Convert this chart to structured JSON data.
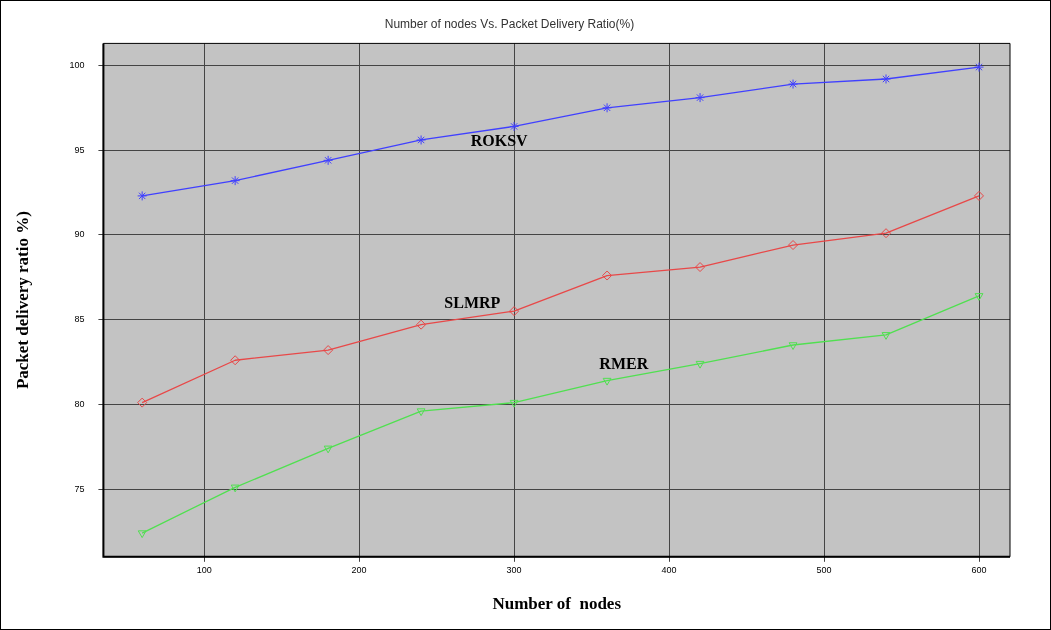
{
  "chart_data": {
    "type": "line",
    "title": "Number of nodes Vs. Packet Delivery Ratio(%)",
    "xlabel": "Number of  nodes",
    "ylabel": "Packet delivery ratio %)",
    "x": [
      60,
      120,
      180,
      240,
      300,
      360,
      420,
      480,
      540,
      600
    ],
    "series": [
      {
        "name": "ROKSV",
        "color": "#4040ff",
        "marker": "cross",
        "values": [
          92.3,
          93.2,
          94.4,
          95.6,
          96.4,
          97.5,
          98.1,
          98.9,
          99.2,
          99.9
        ]
      },
      {
        "name": "SLMRP",
        "color": "#e84848",
        "marker": "diamond",
        "values": [
          80.1,
          82.6,
          83.2,
          84.7,
          85.5,
          87.6,
          88.1,
          89.4,
          90.1,
          92.3
        ]
      },
      {
        "name": "RMER",
        "color": "#50e050",
        "marker": "triangle",
        "values": [
          72.4,
          75.1,
          77.4,
          79.6,
          80.1,
          81.4,
          82.4,
          83.5,
          84.1,
          86.4
        ]
      }
    ],
    "xlim": [
      35,
      620
    ],
    "xticks": [
      100,
      200,
      300,
      400,
      500,
      600
    ],
    "ylim": [
      71,
      101.3
    ],
    "yticks": [
      75,
      80,
      85,
      90,
      95,
      100
    ],
    "grid": true,
    "legend": false,
    "line_style": "solid"
  }
}
